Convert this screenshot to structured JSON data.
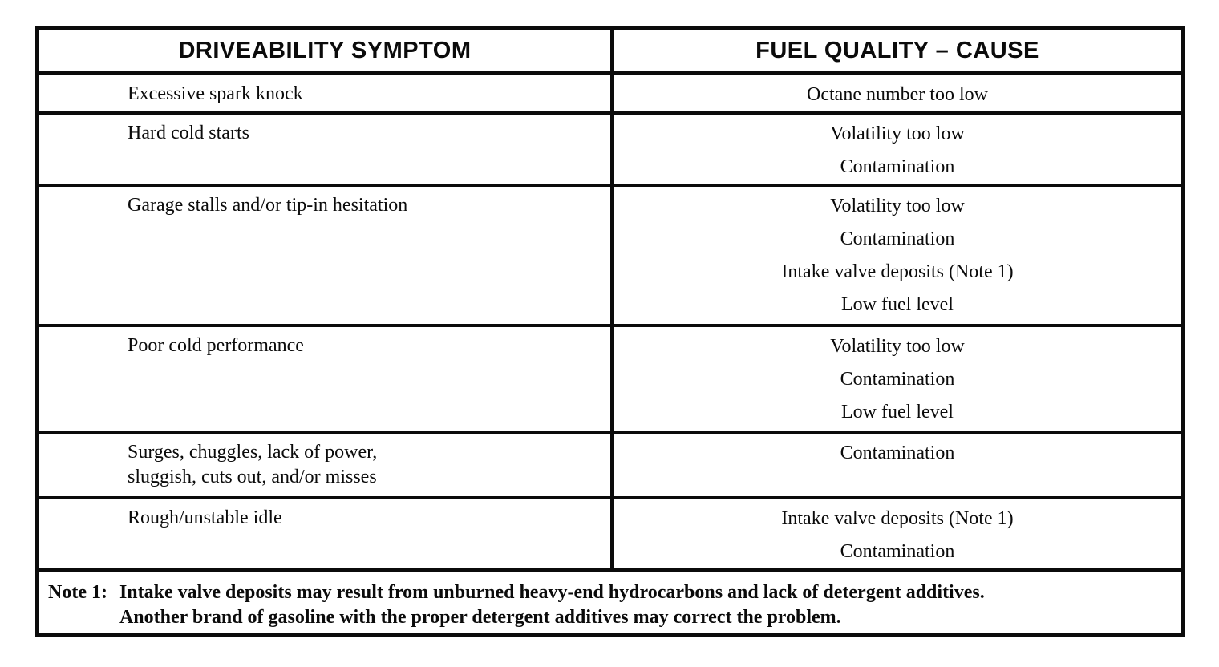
{
  "colors": {
    "ink": "#0b0b0b",
    "paper": "#ffffff"
  },
  "table": {
    "headers": {
      "symptom": "DRIVEABILITY SYMPTOM",
      "cause": "FUEL QUALITY – CAUSE"
    },
    "rows": [
      {
        "symptom": [
          "Excessive spark knock"
        ],
        "causes": [
          "Octane number too low"
        ]
      },
      {
        "symptom": [
          "Hard cold starts"
        ],
        "causes": [
          "Volatility too low",
          "Contamination"
        ]
      },
      {
        "symptom": [
          "Garage stalls and/or tip-in hesitation"
        ],
        "causes": [
          "Volatility too low",
          "Contamination",
          "Intake valve deposits (Note 1)",
          "Low fuel level"
        ]
      },
      {
        "symptom": [
          "Poor cold performance"
        ],
        "causes": [
          "Volatility too low",
          "Contamination",
          "Low fuel level"
        ]
      },
      {
        "symptom": [
          "Surges, chuggles, lack of power,",
          "sluggish, cuts out, and/or misses"
        ],
        "causes": [
          "Contamination"
        ]
      },
      {
        "symptom": [
          "Rough/unstable idle"
        ],
        "causes": [
          "Intake valve deposits (Note 1)",
          "Contamination"
        ]
      }
    ],
    "note": {
      "label": "Note 1:",
      "lines": [
        "Intake valve deposits may result from unburned heavy-end hydrocarbons and lack of detergent additives.",
        "Another brand of gasoline with the proper detergent additives may correct the problem."
      ]
    }
  }
}
